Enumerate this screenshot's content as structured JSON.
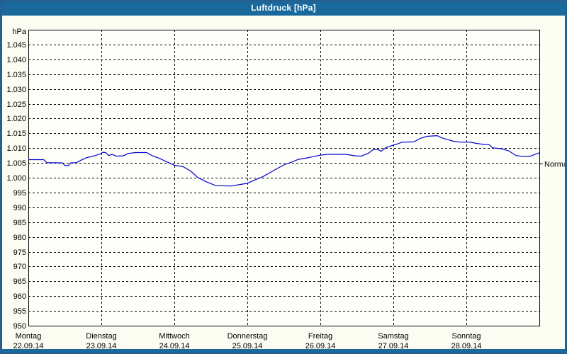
{
  "window": {
    "title": "Luftdruck [hPa]"
  },
  "colors": {
    "titlebar_bg": "#19699d",
    "frame_border": "#246092",
    "window_bg": "#fbfcf2",
    "plot_bg": "#fefefa",
    "grid": "#000000",
    "axis_text": "#000000",
    "title_text": "#ffffff",
    "line": "#0000cc"
  },
  "chart_data": {
    "type": "line",
    "title": "Luftdruck [hPa]",
    "y_unit_label": "hPa",
    "ylim": [
      950,
      1050
    ],
    "ytick_step": 5,
    "grid": "dashed",
    "legend": "none",
    "yticks": [
      {
        "value": 1045,
        "label": "1.045"
      },
      {
        "value": 1040,
        "label": "1.040"
      },
      {
        "value": 1035,
        "label": "1.035"
      },
      {
        "value": 1030,
        "label": "1.030"
      },
      {
        "value": 1025,
        "label": "1.025"
      },
      {
        "value": 1020,
        "label": "1.020"
      },
      {
        "value": 1015,
        "label": "1.015"
      },
      {
        "value": 1010,
        "label": "1.010"
      },
      {
        "value": 1005,
        "label": "1.005"
      },
      {
        "value": 1000,
        "label": "1.000"
      },
      {
        "value": 995,
        "label": "995"
      },
      {
        "value": 990,
        "label": "990"
      },
      {
        "value": 985,
        "label": "985"
      },
      {
        "value": 980,
        "label": "980"
      },
      {
        "value": 975,
        "label": "975"
      },
      {
        "value": 970,
        "label": "970"
      },
      {
        "value": 965,
        "label": "965"
      },
      {
        "value": 960,
        "label": "960"
      },
      {
        "value": 955,
        "label": "955"
      },
      {
        "value": 950,
        "label": "950"
      }
    ],
    "x_axis": {
      "days": [
        {
          "name": "Montag",
          "date": "22.09.14"
        },
        {
          "name": "Dienstag",
          "date": "23.09.14"
        },
        {
          "name": "Mittwoch",
          "date": "24.09.14"
        },
        {
          "name": "Donnerstag",
          "date": "25.09.14"
        },
        {
          "name": "Freitag",
          "date": "26.09.14"
        },
        {
          "name": "Samstag",
          "date": "27.09.14"
        },
        {
          "name": "Sonntag",
          "date": "28.09.14"
        }
      ]
    },
    "normal_marker": {
      "label": "Normal",
      "value": 1004.7
    },
    "series": [
      {
        "name": "Luftdruck",
        "unit": "hPa",
        "color": "#0000cc",
        "points_day_hpa": [
          [
            0.0,
            1006.1
          ],
          [
            0.21,
            1006.1
          ],
          [
            0.25,
            1005.1
          ],
          [
            0.47,
            1005.0
          ],
          [
            0.5,
            1004.1
          ],
          [
            0.55,
            1004.1
          ],
          [
            0.58,
            1005.0
          ],
          [
            0.66,
            1005.1
          ],
          [
            0.72,
            1005.9
          ],
          [
            0.8,
            1006.8
          ],
          [
            0.88,
            1007.2
          ],
          [
            0.98,
            1008.0
          ],
          [
            1.02,
            1008.6
          ],
          [
            1.06,
            1008.5
          ],
          [
            1.1,
            1007.5
          ],
          [
            1.15,
            1007.9
          ],
          [
            1.2,
            1007.3
          ],
          [
            1.3,
            1007.4
          ],
          [
            1.37,
            1008.2
          ],
          [
            1.47,
            1008.5
          ],
          [
            1.62,
            1008.5
          ],
          [
            1.7,
            1007.4
          ],
          [
            1.8,
            1006.5
          ],
          [
            1.9,
            1005.3
          ],
          [
            2.0,
            1004.2
          ],
          [
            2.12,
            1003.7
          ],
          [
            2.22,
            1002.3
          ],
          [
            2.32,
            1000.1
          ],
          [
            2.43,
            998.7
          ],
          [
            2.57,
            997.3
          ],
          [
            2.78,
            997.2
          ],
          [
            2.9,
            997.7
          ],
          [
            3.0,
            998.1
          ],
          [
            3.1,
            999.2
          ],
          [
            3.21,
            1000.3
          ],
          [
            3.31,
            1001.7
          ],
          [
            3.4,
            1003.0
          ],
          [
            3.5,
            1004.3
          ],
          [
            3.61,
            1005.3
          ],
          [
            3.7,
            1006.2
          ],
          [
            3.8,
            1006.6
          ],
          [
            3.88,
            1007.0
          ],
          [
            4.0,
            1007.6
          ],
          [
            4.1,
            1007.9
          ],
          [
            4.35,
            1007.9
          ],
          [
            4.48,
            1007.4
          ],
          [
            4.56,
            1007.3
          ],
          [
            4.66,
            1008.3
          ],
          [
            4.72,
            1009.4
          ],
          [
            4.79,
            1009.6
          ],
          [
            4.83,
            1008.9
          ],
          [
            4.9,
            1010.2
          ],
          [
            4.97,
            1010.8
          ],
          [
            5.04,
            1011.3
          ],
          [
            5.12,
            1012.0
          ],
          [
            5.28,
            1012.1
          ],
          [
            5.37,
            1013.3
          ],
          [
            5.46,
            1014.0
          ],
          [
            5.6,
            1014.2
          ],
          [
            5.66,
            1013.5
          ],
          [
            5.74,
            1012.9
          ],
          [
            5.83,
            1012.3
          ],
          [
            5.92,
            1012.0
          ],
          [
            6.05,
            1012.0
          ],
          [
            6.14,
            1011.6
          ],
          [
            6.25,
            1011.2
          ],
          [
            6.31,
            1011.2
          ],
          [
            6.36,
            1010.1
          ],
          [
            6.48,
            1009.8
          ],
          [
            6.58,
            1009.1
          ],
          [
            6.68,
            1007.5
          ],
          [
            6.8,
            1007.1
          ],
          [
            6.88,
            1007.3
          ],
          [
            6.95,
            1008.0
          ],
          [
            7.0,
            1008.4
          ]
        ]
      }
    ]
  }
}
